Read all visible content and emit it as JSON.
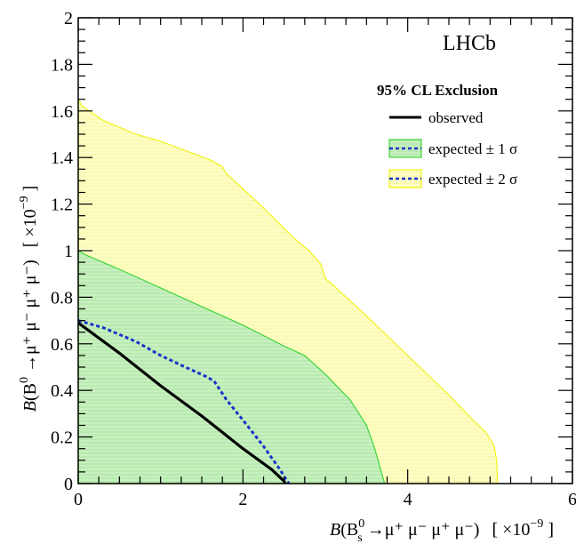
{
  "chart_data": {
    "type": "area",
    "experiment_label": "LHCb",
    "xlabel": "B(B_s^0 → μ⁺ μ⁻ μ⁺ μ⁻)   [ ×10⁻⁹ ]",
    "xlabel_parts": {
      "lead": "B",
      "open": "(B",
      "sup": "0",
      "sub": "s",
      "decay": " →μ⁺ μ⁻ μ⁺ μ⁻)",
      "scale": "[ ×10",
      "exp": "−9",
      "close": " ]"
    },
    "ylabel": "B(B⁰ →μ⁺ μ⁻ μ⁺ μ⁻)   [ ×10⁻⁹ ]",
    "ylabel_parts": {
      "lead": "B",
      "open": "(B",
      "sup": "0",
      "decay": " →μ⁺ μ⁻ μ⁺ μ⁻)",
      "scale": "[ ×10",
      "exp": "−9",
      "close": " ]"
    },
    "xlim": [
      0,
      6
    ],
    "ylim": [
      0,
      2
    ],
    "x_ticks": [
      0,
      2,
      4,
      6
    ],
    "y_ticks": [
      0,
      0.2,
      0.4,
      0.6,
      0.8,
      1,
      1.2,
      1.4,
      1.6,
      1.8,
      2
    ],
    "grid": false,
    "legend": {
      "title": "95% CL Exclusion",
      "placement": "top-right",
      "entries": [
        {
          "label": "observed",
          "kind": "line",
          "color": "#000000"
        },
        {
          "label": "expected ± 1 σ",
          "kind": "band",
          "color": "#3ed63e",
          "fill": "#c8f0c0",
          "line_color": "#1a33cc"
        },
        {
          "label": "expected ± 2 σ",
          "kind": "band",
          "color": "#f2f21a",
          "fill": "#fdfdc6",
          "line_color": "#1a33cc"
        }
      ]
    },
    "series": [
      {
        "name": "expected ± 2 σ",
        "kind": "band",
        "fill": "#fdfdc6",
        "edge": "#f2f21a",
        "points": [
          [
            0,
            1.65
          ],
          [
            0.05,
            1.62
          ],
          [
            0.3,
            1.56
          ],
          [
            0.7,
            1.5
          ],
          [
            1.0,
            1.47
          ],
          [
            1.3,
            1.43
          ],
          [
            1.6,
            1.39
          ],
          [
            1.75,
            1.36
          ],
          [
            1.8,
            1.33
          ],
          [
            2.2,
            1.2
          ],
          [
            2.6,
            1.06
          ],
          [
            2.8,
            1.0
          ],
          [
            2.95,
            0.94
          ],
          [
            3.0,
            0.88
          ],
          [
            3.1,
            0.85
          ],
          [
            3.5,
            0.72
          ],
          [
            4.0,
            0.55
          ],
          [
            4.5,
            0.38
          ],
          [
            4.8,
            0.27
          ],
          [
            4.95,
            0.22
          ],
          [
            5.05,
            0.16
          ],
          [
            5.08,
            0.1
          ],
          [
            5.09,
            0.0
          ],
          [
            0,
            0
          ]
        ]
      },
      {
        "name": "expected ± 1 σ",
        "kind": "band",
        "fill": "#c8f0c0",
        "edge": "#3ed63e",
        "points": [
          [
            0,
            1.0
          ],
          [
            0.1,
            0.98
          ],
          [
            0.5,
            0.92
          ],
          [
            1.0,
            0.84
          ],
          [
            1.5,
            0.76
          ],
          [
            2.0,
            0.68
          ],
          [
            2.5,
            0.59
          ],
          [
            2.75,
            0.55
          ],
          [
            3.0,
            0.47
          ],
          [
            3.3,
            0.36
          ],
          [
            3.5,
            0.25
          ],
          [
            3.6,
            0.15
          ],
          [
            3.72,
            0.0
          ],
          [
            0,
            0
          ]
        ]
      },
      {
        "name": "expected",
        "kind": "line",
        "color": "#1a33cc",
        "dashed": true,
        "points": [
          [
            0,
            0.7
          ],
          [
            0.3,
            0.67
          ],
          [
            0.7,
            0.61
          ],
          [
            1.0,
            0.55
          ],
          [
            1.3,
            0.5
          ],
          [
            1.55,
            0.46
          ],
          [
            1.65,
            0.44
          ],
          [
            1.8,
            0.36
          ],
          [
            2.05,
            0.25
          ],
          [
            2.25,
            0.16
          ],
          [
            2.45,
            0.06
          ],
          [
            2.52,
            0.02
          ],
          [
            2.56,
            0.0
          ]
        ]
      },
      {
        "name": "observed",
        "kind": "line",
        "color": "#000000",
        "dashed": false,
        "points": [
          [
            0,
            0.69
          ],
          [
            0.5,
            0.56
          ],
          [
            1.0,
            0.42
          ],
          [
            1.5,
            0.29
          ],
          [
            2.0,
            0.15
          ],
          [
            2.35,
            0.06
          ],
          [
            2.5,
            0.01
          ],
          [
            2.51,
            0.0
          ]
        ]
      }
    ]
  }
}
